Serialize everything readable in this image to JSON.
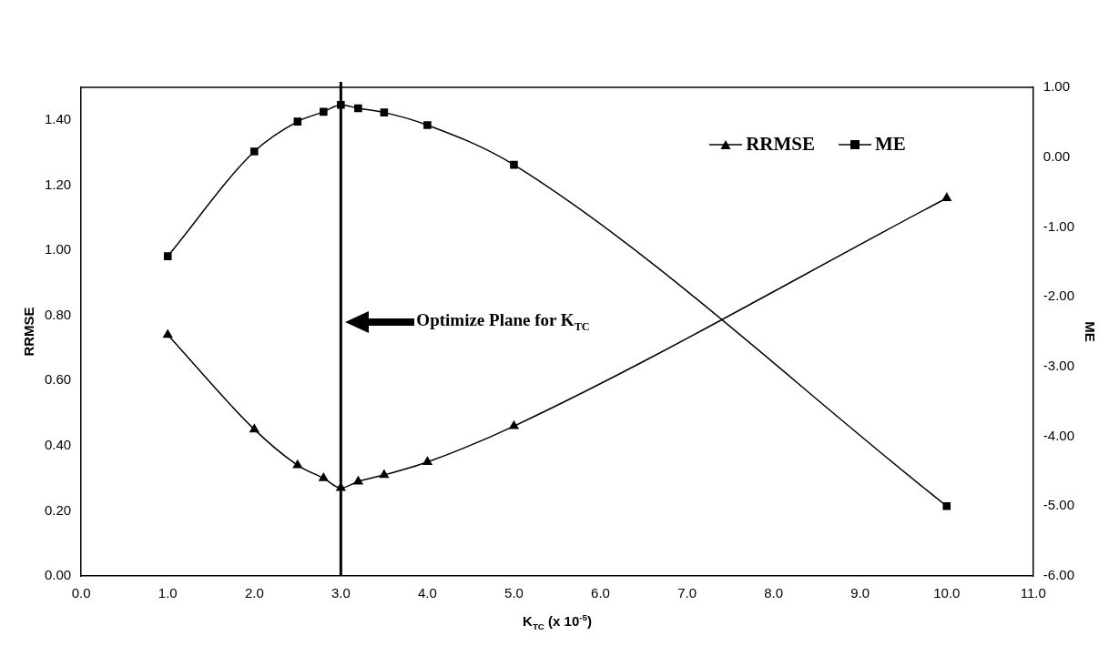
{
  "chart_data": {
    "type": "line",
    "xlabel": "K$_{TC}$ (x 10$^{-5}$)",
    "ylabel": "RRMSE",
    "y2label": "ME",
    "x": [
      1,
      2,
      2.5,
      2.8,
      3,
      3.2,
      3.5,
      4,
      5,
      10
    ],
    "series": [
      {
        "name": "RRMSE",
        "color": "#000000",
        "marker": "triangle",
        "values": [
          0.74,
          0.45,
          0.34,
          0.3,
          0.27,
          0.29,
          0.31,
          0.35,
          0.46,
          1.16
        ]
      },
      {
        "name": "ME",
        "color": "#000000",
        "marker": "square",
        "axis": "y2",
        "values": [
          -1.42,
          0.08,
          0.51,
          0.65,
          0.75,
          0.7,
          0.64,
          0.46,
          -0.11,
          -5.0
        ]
      }
    ],
    "xlim": [
      0,
      11
    ],
    "xticks": [
      {
        "value": 0,
        "label": "0.0"
      },
      {
        "value": 1,
        "label": "1.0"
      },
      {
        "value": 2,
        "label": "2.0"
      },
      {
        "value": 3,
        "label": "3.0"
      },
      {
        "value": 4,
        "label": "4.0"
      },
      {
        "value": 5,
        "label": "5.0"
      },
      {
        "value": 6,
        "label": "6.0"
      },
      {
        "value": 7,
        "label": "7.0"
      },
      {
        "value": 8,
        "label": "8.0"
      },
      {
        "value": 9,
        "label": "9.0"
      },
      {
        "value": 10,
        "label": "10.0"
      },
      {
        "value": 11,
        "label": "11.0"
      }
    ],
    "ylim": [
      0,
      1.5
    ],
    "yticks": [
      {
        "value": 0,
        "label": "0.00"
      },
      {
        "value": 0.2,
        "label": "0.20"
      },
      {
        "value": 0.4,
        "label": "0.40"
      },
      {
        "value": 0.6,
        "label": "0.60"
      },
      {
        "value": 0.8,
        "label": "0.80"
      },
      {
        "value": 1,
        "label": "1.00"
      },
      {
        "value": 1.2,
        "label": "1.20"
      },
      {
        "value": 1.4,
        "label": "1.40"
      }
    ],
    "y2lim": [
      -6,
      1
    ],
    "y2ticks": [
      {
        "value": -6,
        "label": "-6.00"
      },
      {
        "value": -5,
        "label": "-5.00"
      },
      {
        "value": -4,
        "label": "-4.00"
      },
      {
        "value": -3,
        "label": "-3.00"
      },
      {
        "value": -2,
        "label": "-2.00"
      },
      {
        "value": -1,
        "label": "-1.00"
      },
      {
        "value": 0,
        "label": "0.00"
      },
      {
        "value": 1,
        "label": "1.00"
      }
    ],
    "ref_lines": [
      {
        "axis": "x",
        "value": 3,
        "color": "#000000"
      }
    ],
    "annotations": [
      "Optimize Plane for K$_{TC}$"
    ],
    "grid": false,
    "legend": "top right",
    "line_style": "solid"
  }
}
